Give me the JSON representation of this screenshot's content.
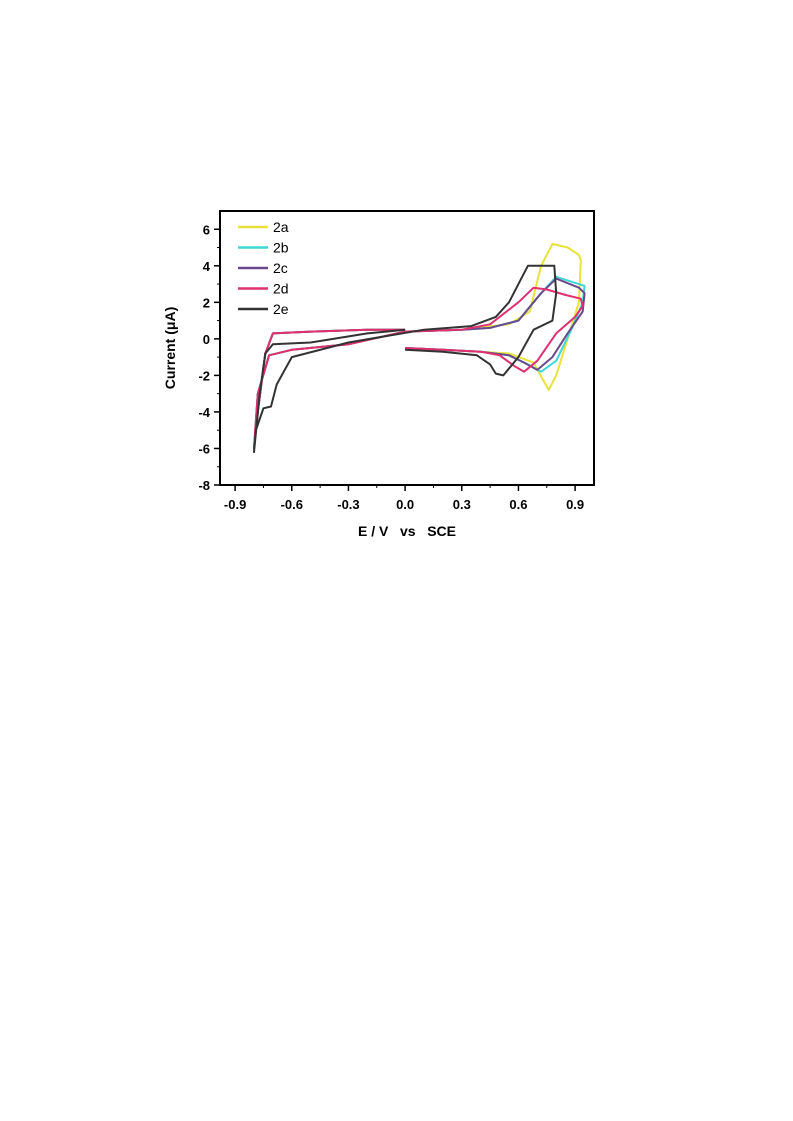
{
  "chart_data": {
    "type": "line",
    "xlabel": "E / V   vs   SCE",
    "ylabel": "Current (μA)",
    "xlim": [
      -0.98,
      1.0
    ],
    "ylim": [
      -8,
      7
    ],
    "x_ticks": [
      -0.9,
      -0.6,
      -0.3,
      0.0,
      0.3,
      0.6,
      0.9
    ],
    "x_tick_labels": [
      "-0.9",
      "-0.6",
      "-0.3",
      "0.0",
      "0.3",
      "0.6",
      "0.9"
    ],
    "y_ticks": [
      -8,
      -6,
      -4,
      -2,
      0,
      2,
      4,
      6
    ],
    "y_tick_labels": [
      "-8",
      "-6",
      "-4",
      "-2",
      "0",
      "2",
      "4",
      "6"
    ],
    "legend_position": "top-left",
    "grid": false,
    "series": [
      {
        "name": "2a",
        "color": "#e8e23a",
        "x": [
          0.0,
          0.2,
          0.4,
          0.55,
          0.68,
          0.76,
          0.8,
          0.86,
          0.92,
          0.93,
          0.92,
          0.86,
          0.78,
          0.72,
          0.66,
          0.55,
          0.3,
          0.0,
          -0.3,
          -0.6,
          -0.72,
          -0.78,
          -0.8,
          -0.78,
          -0.74,
          -0.7,
          -0.5,
          -0.2,
          0.0
        ],
        "y": [
          -0.5,
          -0.6,
          -0.7,
          -0.8,
          -1.3,
          -2.8,
          -2.0,
          0.0,
          2.0,
          4.3,
          4.6,
          5.0,
          5.2,
          4.0,
          1.5,
          0.8,
          0.5,
          0.4,
          -0.3,
          -0.6,
          -0.9,
          -3.0,
          -6.0,
          -4.0,
          -0.8,
          0.3,
          0.4,
          0.5,
          0.5
        ]
      },
      {
        "name": "2b",
        "color": "#3fd7d9",
        "x": [
          0.0,
          0.2,
          0.4,
          0.55,
          0.65,
          0.72,
          0.8,
          0.88,
          0.94,
          0.95,
          0.92,
          0.8,
          0.72,
          0.6,
          0.45,
          0.3,
          0.0,
          -0.3,
          -0.6,
          -0.72,
          -0.78,
          -0.8,
          -0.78,
          -0.74,
          -0.7,
          -0.5,
          -0.2,
          0.0
        ],
        "y": [
          -0.5,
          -0.6,
          -0.7,
          -0.9,
          -1.4,
          -1.8,
          -1.2,
          0.5,
          2.0,
          2.9,
          3.0,
          3.4,
          2.5,
          1.0,
          0.6,
          0.5,
          0.4,
          -0.3,
          -0.6,
          -0.9,
          -3.0,
          -6.0,
          -4.0,
          -0.8,
          0.3,
          0.4,
          0.5,
          0.5
        ]
      },
      {
        "name": "2c",
        "color": "#6a4a8c",
        "x": [
          0.0,
          0.2,
          0.4,
          0.55,
          0.63,
          0.7,
          0.78,
          0.86,
          0.94,
          0.95,
          0.92,
          0.8,
          0.72,
          0.6,
          0.45,
          0.3,
          0.0,
          -0.3,
          -0.6,
          -0.72,
          -0.78,
          -0.8,
          -0.78,
          -0.74,
          -0.7,
          -0.5,
          -0.2,
          0.0
        ],
        "y": [
          -0.5,
          -0.6,
          -0.7,
          -0.9,
          -1.3,
          -1.7,
          -1.0,
          0.3,
          1.5,
          2.5,
          2.8,
          3.3,
          2.5,
          1.0,
          0.6,
          0.5,
          0.4,
          -0.3,
          -0.6,
          -0.9,
          -3.0,
          -6.0,
          -4.0,
          -0.8,
          0.3,
          0.4,
          0.5,
          0.5
        ]
      },
      {
        "name": "2d",
        "color": "#e0306f",
        "x": [
          0.0,
          0.2,
          0.4,
          0.5,
          0.58,
          0.63,
          0.7,
          0.8,
          0.9,
          0.94,
          0.93,
          0.85,
          0.75,
          0.68,
          0.6,
          0.45,
          0.3,
          0.0,
          -0.3,
          -0.6,
          -0.72,
          -0.78,
          -0.8,
          -0.78,
          -0.74,
          -0.7,
          -0.5,
          -0.2,
          0.0
        ],
        "y": [
          -0.5,
          -0.6,
          -0.7,
          -0.9,
          -1.5,
          -1.8,
          -1.2,
          0.3,
          1.2,
          1.8,
          2.2,
          2.4,
          2.7,
          2.8,
          2.0,
          0.8,
          0.5,
          0.4,
          -0.3,
          -0.6,
          -0.9,
          -3.0,
          -6.0,
          -4.0,
          -0.8,
          0.3,
          0.4,
          0.5,
          0.5
        ]
      },
      {
        "name": "2e",
        "color": "#333333",
        "x": [
          0.0,
          0.2,
          0.38,
          0.45,
          0.48,
          0.52,
          0.6,
          0.68,
          0.78,
          0.8,
          0.79,
          0.72,
          0.65,
          0.6,
          0.55,
          0.48,
          0.35,
          0.1,
          -0.3,
          -0.6,
          -0.68,
          -0.71,
          -0.75,
          -0.79,
          -0.8,
          -0.77,
          -0.74,
          -0.7,
          -0.5,
          -0.2,
          0.0
        ],
        "y": [
          -0.6,
          -0.7,
          -0.9,
          -1.4,
          -1.9,
          -2.0,
          -1.0,
          0.5,
          1.0,
          2.5,
          4.0,
          4.0,
          4.0,
          3.0,
          2.0,
          1.2,
          0.7,
          0.5,
          -0.2,
          -1.0,
          -2.5,
          -3.7,
          -3.8,
          -5.0,
          -6.2,
          -3.0,
          -0.8,
          -0.3,
          -0.2,
          0.3,
          0.5
        ]
      }
    ]
  }
}
